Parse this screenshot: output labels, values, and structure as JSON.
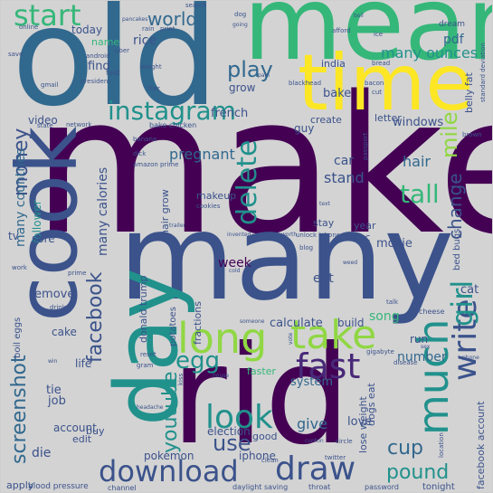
{
  "colors": {
    "background": "#d3d3d3",
    "purple": "#440154",
    "indigo": "#3b528b",
    "blue": "#31688e",
    "teal": "#21918c",
    "green": "#35b779",
    "lime": "#90d743",
    "yellow": "#fde725",
    "violet": "#482878"
  },
  "words": {
    "make": "make",
    "old": "old",
    "mean": "mean",
    "time": "time",
    "many": "many",
    "rid": "rid",
    "cook": "cook",
    "day": "day",
    "long": "long",
    "take": "take",
    "fast": "fast",
    "much": "much",
    "write": "write",
    "girl": "girl",
    "look": "look",
    "download": "download",
    "draw": "draw",
    "delete": "delete",
    "instagram": "instagram",
    "start": "start",
    "world": "world",
    "play": "play",
    "money": "money",
    "screenshot": "screenshot",
    "facebook": "facebook",
    "egg": "egg",
    "mile": "mile",
    "change": "change",
    "tall": "tall",
    "pound": "pound",
    "cup": "cup",
    "youtube": "youtube",
    "use": "use",
    "give": "give",
    "pregnant": "pregnant",
    "many_calories": "many calories",
    "many_countries": "many countries",
    "many_ounces": "many ounces",
    "hair": "hair",
    "car": "car",
    "stand": "stand",
    "video": "video",
    "french": "french",
    "rice": "rice",
    "find": "find",
    "grow": "grow",
    "bake": "bake",
    "india": "india",
    "pdf": "pdf",
    "week": "week",
    "eat": "eat",
    "movie": "movie",
    "song": "song",
    "calculate": "calculate",
    "remove": "remove",
    "cake": "cake",
    "tie": "tie",
    "job": "job",
    "die": "die",
    "edit": "edit",
    "account": "account",
    "apply": "apply",
    "buy": "buy",
    "election": "election",
    "iphone": "iphone",
    "love": "love",
    "system": "system",
    "number": "number",
    "run": "run",
    "build": "build",
    "cat": "cat",
    "follower": "follower",
    "today": "today",
    "name": "name",
    "windows": "windows",
    "letter": "letter",
    "create": "create",
    "guy": "guy",
    "stay": "stay",
    "year": "year",
    "mac": "mac",
    "makeup": "makeup",
    "faster": "faster",
    "life": "life",
    "tv": "tv",
    "sore": "sore",
    "good": "good",
    "pokemon": "pokemon",
    "tonight": "tonight",
    "hair_grow": "hair grow",
    "potatoes": "potatoes",
    "fractions": "fractions",
    "donald_trump": "donald trump",
    "lose_weight": "lose weight",
    "facebook_account": "facebook account",
    "belly_fat": "belly fat",
    "dogs_eat": "dogs eat",
    "bed_bugs": "bed bugs",
    "boil_eggs": "boil eggs",
    "bake_chicken": "bake chicken",
    "blood_pressure": "blood pressure",
    "channel": "channel",
    "daylight_saving": "daylight saving",
    "throat": "throat",
    "password": "password",
    "twitter": "twitter",
    "standard_deviation": "standard deviation",
    "android": "android",
    "uber": "uber",
    "feet": "feet",
    "president": "president",
    "gmail": "gmail",
    "network": "network",
    "weight": "weight",
    "liter": "liter",
    "blackhead": "blackhead",
    "bacon": "bacon",
    "cut": "cut",
    "bread": "bread",
    "dream": "dream",
    "afford": "afford",
    "dog": "dog",
    "pancakes": "pancakes",
    "rain": "rain",
    "print": "print",
    "online": "online",
    "save": "save",
    "search": "search",
    "banana": "banana",
    "amazon_prime": "amazon prime",
    "dick": "dick",
    "cookies": "cookies",
    "unlock_iphone": "unlock iphone",
    "worth": "worth",
    "invented": "invented",
    "blog": "blog",
    "prime": "prime",
    "work": "work",
    "drink": "drink",
    "kiss": "kiss",
    "gram": "gram",
    "house": "house",
    "clean": "clean",
    "circle": "circle",
    "disease": "disease",
    "gigabyte": "gigabyte",
    "location": "location",
    "headache": "headache",
    "cheese": "cheese",
    "talk": "talk",
    "brown": "brown",
    "passport": "passport",
    "state": "state",
    "reset": "reset",
    "sex": "sex",
    "phone": "phone",
    "win": "win",
    "cold": "cold",
    "weed": "weed",
    "vote": "vote",
    "someone": "someone",
    "ice": "ice",
    "boil": "boil",
    "going": "going",
    "pain": "pain",
    "trailer": "trailer",
    "text": "text",
    "cunton": "cunton"
  }
}
